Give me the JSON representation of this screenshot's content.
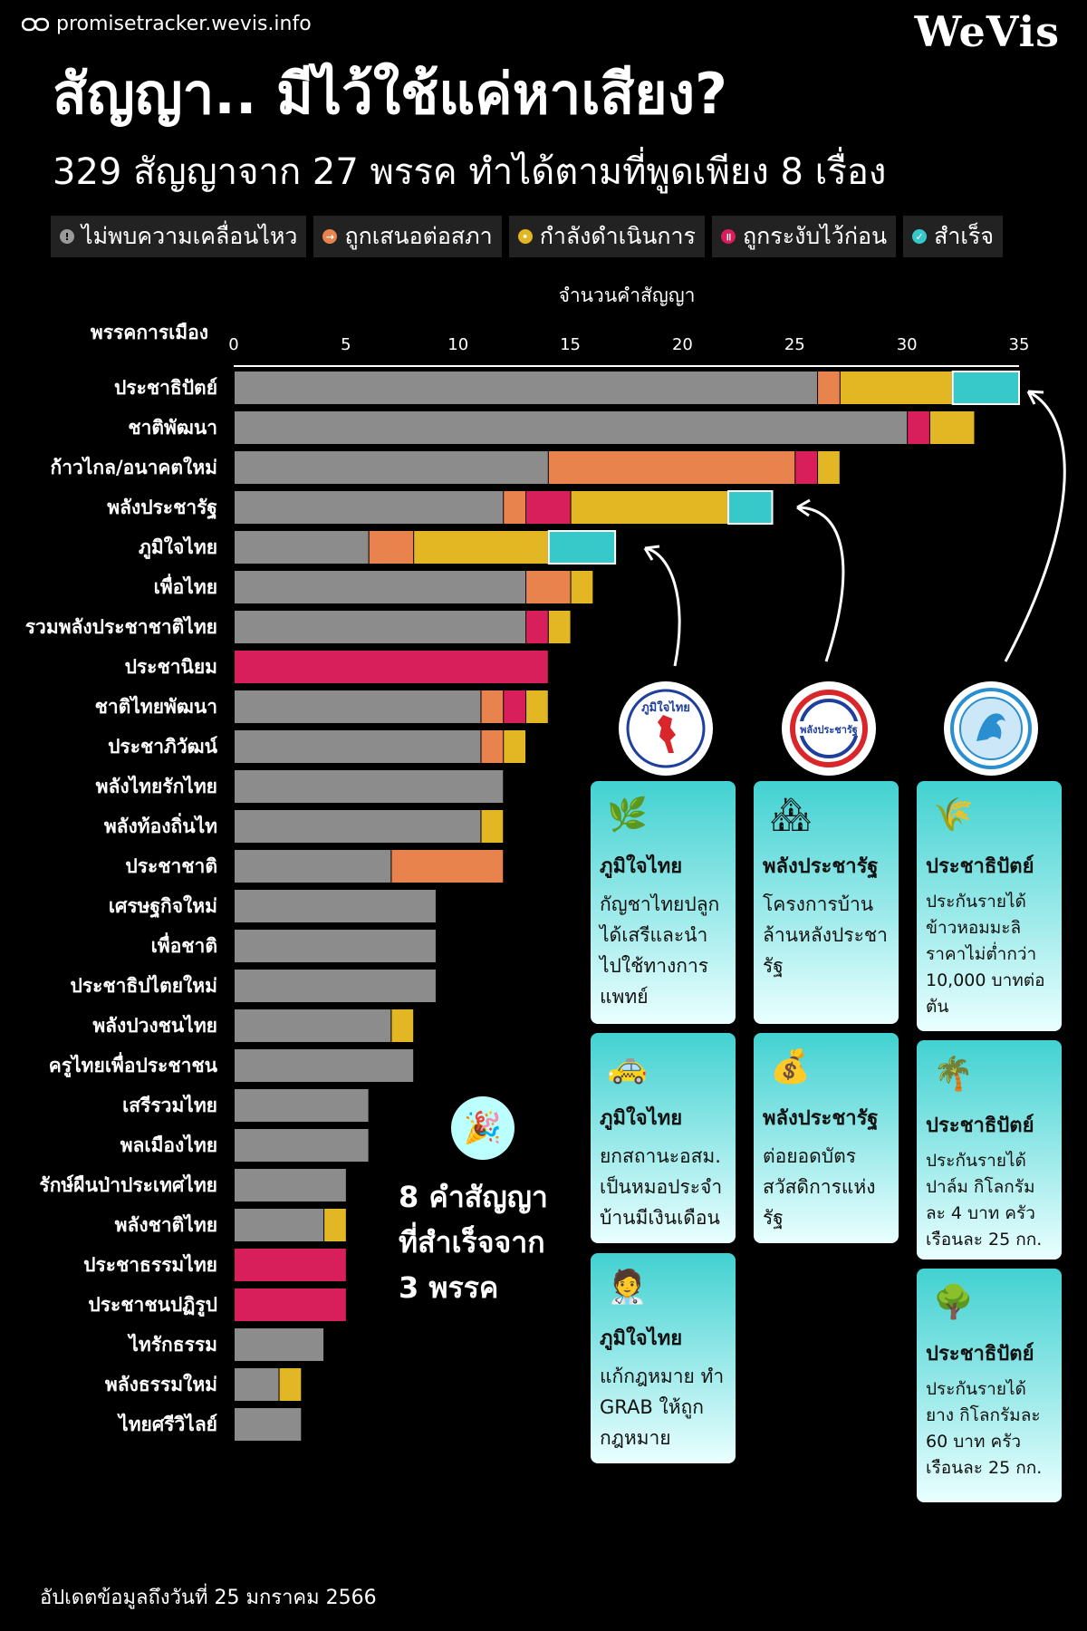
{
  "header": {
    "source": "promisetracker.wevis.info",
    "brand": "WeVis",
    "title": "สัญญา.. มีไว้ใช้แค่หาเสียง?",
    "subtitle": "329 สัญญาจาก 27 พรรค ทำได้ตามที่พูดเพียง 8 เรื่อง"
  },
  "legend": [
    {
      "label": "ไม่พบความเคลื่อนไหว",
      "color": "#9a9a9a",
      "glyph": "!"
    },
    {
      "label": "ถูกเสนอต่อสภา",
      "color": "#e8834e",
      "glyph": "→"
    },
    {
      "label": "กำลังดำเนินการ",
      "color": "#e3b723",
      "glyph": "•"
    },
    {
      "label": "ถูกระงับไว้ก่อน",
      "color": "#d81e5b",
      "glyph": "॥"
    },
    {
      "label": "สำเร็จ",
      "color": "#37c9c9",
      "glyph": "✓"
    }
  ],
  "chart_data": {
    "type": "bar",
    "orientation": "horizontal",
    "stacked": true,
    "xlabel": "จำนวนคำสัญญา",
    "ylabel": "พรรคการเมือง",
    "xlim": [
      0,
      35
    ],
    "xticks": [
      0,
      5,
      10,
      15,
      20,
      25,
      30,
      35
    ],
    "categories": [
      "ประชาธิปัตย์",
      "ชาติพัฒนา",
      "ก้าวไกล/อนาคตใหม่",
      "พลังประชารัฐ",
      "ภูมิใจไทย",
      "เพื่อไทย",
      "รวมพลังประชาชาติไทย",
      "ประชานิยม",
      "ชาติไทยพัฒนา",
      "ประชาภิวัฒน์",
      "พลังไทยรักไทย",
      "พลังท้องถิ่นไท",
      "ประชาชาติ",
      "เศรษฐกิจใหม่",
      "เพื่อชาติ",
      "ประชาธิปไตยใหม่",
      "พลังปวงชนไทย",
      "ครูไทยเพื่อประชาชน",
      "เสรีรวมไทย",
      "พลเมืองไทย",
      "รักษ์ผืนป่าประเทศไทย",
      "พลังชาติไทย",
      "ประชาธรรมไทย",
      "ประชาชนปฏิรูป",
      "ไทรักธรรม",
      "พลังธรรมใหม่",
      "ไทยศรีวิไลย์"
    ],
    "series": [
      {
        "name": "ไม่พบความเคลื่อนไหว",
        "color": "#8c8c8c",
        "values": [
          26,
          30,
          14,
          12,
          6,
          13,
          13,
          0,
          11,
          11,
          12,
          11,
          7,
          9,
          9,
          9,
          7,
          8,
          6,
          6,
          5,
          4,
          0,
          0,
          4,
          2,
          3
        ]
      },
      {
        "name": "ถูกเสนอต่อสภา",
        "color": "#e8834e",
        "values": [
          1,
          0,
          11,
          1,
          2,
          2,
          0,
          0,
          1,
          1,
          0,
          0,
          5,
          0,
          0,
          0,
          0,
          0,
          0,
          0,
          0,
          0,
          0,
          0,
          0,
          0,
          0
        ]
      },
      {
        "name": "ถูกระงับไว้ก่อน",
        "color": "#d81e5b",
        "values": [
          0,
          1,
          1,
          2,
          0,
          0,
          1,
          14,
          1,
          0,
          0,
          0,
          0,
          0,
          0,
          0,
          0,
          0,
          0,
          0,
          0,
          0,
          5,
          5,
          0,
          0,
          0
        ]
      },
      {
        "name": "กำลังดำเนินการ",
        "color": "#e3b723",
        "values": [
          5,
          2,
          1,
          7,
          6,
          1,
          1,
          0,
          1,
          1,
          0,
          1,
          0,
          0,
          0,
          0,
          1,
          0,
          0,
          0,
          0,
          1,
          0,
          0,
          0,
          1,
          0
        ]
      },
      {
        "name": "สำเร็จ",
        "color": "#37c9c9",
        "values": [
          3,
          0,
          0,
          2,
          3,
          0,
          0,
          0,
          0,
          0,
          0,
          0,
          0,
          0,
          0,
          0,
          0,
          0,
          0,
          0,
          0,
          0,
          0,
          0,
          0,
          0,
          0
        ]
      }
    ]
  },
  "success_note": "8 คำสัญญา\nที่สำเร็จจาก\n3 พรรค",
  "success_icon": "party-popper-icon",
  "logos": [
    {
      "party": "ภูมิใจไทย",
      "text": "ภูมิใจไทย"
    },
    {
      "party": "พลังประชารัฐ",
      "text": "พลังประชารัฐ"
    },
    {
      "party": "ประชาธิปัตย์",
      "text": ""
    }
  ],
  "cards": {
    "bhumjaithai": [
      {
        "party": "ภูมิใจไทย",
        "text": "กัญชาไทยปลูกได้เสรีและนำไปใช้ทางการแพทย์",
        "icon": "herb-icon",
        "glyph": "🌿"
      },
      {
        "party": "ภูมิใจไทย",
        "text": "ยกสถานะอสม. เป็นหมอประจำบ้านมีเงินเดือน",
        "icon": "taxi-icon",
        "glyph": "🚕"
      },
      {
        "party": "ภูมิใจไทย",
        "text": "แก้กฎหมาย ทำ GRAB ให้ถูกกฎหมาย",
        "icon": "health-worker-icon",
        "glyph": "🧑‍⚕️"
      }
    ],
    "palangpracharat": [
      {
        "party": "พลังประชารัฐ",
        "text": "โครงการบ้านล้านหลังประชารัฐ",
        "icon": "houses-icon",
        "glyph": "🏘"
      },
      {
        "party": "พลังประชารัฐ",
        "text": "ต่อยอดบัตรสวัสดิการแห่งรัฐ",
        "icon": "money-bag-icon",
        "glyph": "💰"
      }
    ],
    "democrat": [
      {
        "party": "ประชาธิปัตย์",
        "text": "ประกันรายได้ข้าวหอมมะลิราคาไม่ต่ำกว่า 10,000 บาทต่อตัน",
        "icon": "rice-icon",
        "glyph": "🌾"
      },
      {
        "party": "ประชาธิปัตย์",
        "text": "ประกันรายได้ปาล์ม กิโลกรัมละ 4 บาท ครัวเรือนละ 25  กก.",
        "icon": "palm-tree-icon",
        "glyph": "🌴"
      },
      {
        "party": "ประชาธิปัตย์",
        "text": "ประกันรายได้ยาง กิโลกรัมละ 60 บาท ครัวเรือนละ 25 กก.",
        "icon": "tree-icon",
        "glyph": "🌳"
      }
    ]
  },
  "footer": "อัปเดตข้อมูลถึงวันที่ 25 มกราคม 2566"
}
